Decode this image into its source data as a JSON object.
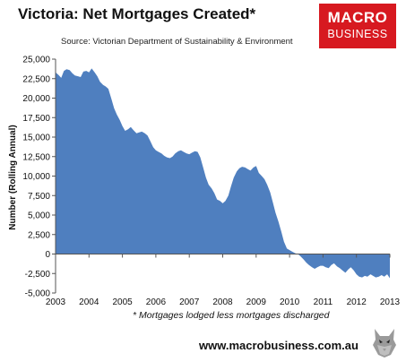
{
  "header": {
    "title": "Victoria: Net Mortgages Created*",
    "source": "Source: Victorian Department of Sustainability & Environment"
  },
  "logo": {
    "line1": "MACRO",
    "line2": "BUSINESS",
    "color": "#d71920"
  },
  "footer": {
    "footnote": "* Mortgages lodged less mortgages discharged",
    "website": "www.macrobusiness.com.au"
  },
  "chart_data": {
    "type": "area",
    "ylabel": "Number (Rolling Annual)",
    "xlabel": "",
    "ylim": [
      -5000,
      25000
    ],
    "xlim": [
      2003,
      2013
    ],
    "yticks": [
      -5000,
      -2500,
      0,
      2500,
      5000,
      7500,
      10000,
      12500,
      15000,
      17500,
      20000,
      22500,
      25000
    ],
    "ytick_labels": [
      "-5,000",
      "-2,500",
      "0",
      "2,500",
      "5,000",
      "7,500",
      "10,000",
      "12,500",
      "15,000",
      "17,500",
      "20,000",
      "22,500",
      "25,000"
    ],
    "xticks": [
      2003,
      2004,
      2005,
      2006,
      2007,
      2008,
      2009,
      2010,
      2011,
      2012,
      2013
    ],
    "xtick_labels": [
      "2003",
      "2004",
      "2005",
      "2006",
      "2007",
      "2008",
      "2009",
      "2010",
      "2011",
      "2012",
      "2013"
    ],
    "fill_color": "#4f7fbf",
    "grid": false,
    "series": [
      {
        "x": [
          2003.0,
          2003.08,
          2003.17,
          2003.25,
          2003.33,
          2003.42,
          2003.5,
          2003.58,
          2003.67,
          2003.75,
          2003.83,
          2003.92,
          2004.0,
          2004.08,
          2004.17,
          2004.25,
          2004.33,
          2004.42,
          2004.5,
          2004.58,
          2004.67,
          2004.75,
          2004.83,
          2004.92,
          2005.0,
          2005.08,
          2005.17,
          2005.25,
          2005.33,
          2005.42,
          2005.5,
          2005.58,
          2005.67,
          2005.75,
          2005.83,
          2005.92,
          2006.0,
          2006.08,
          2006.17,
          2006.25,
          2006.33,
          2006.42,
          2006.5,
          2006.58,
          2006.67,
          2006.75,
          2006.83,
          2006.92,
          2007.0,
          2007.08,
          2007.17,
          2007.25,
          2007.33,
          2007.42,
          2007.5,
          2007.58,
          2007.67,
          2007.75,
          2007.83,
          2007.92,
          2008.0,
          2008.08,
          2008.17,
          2008.25,
          2008.33,
          2008.42,
          2008.5,
          2008.58,
          2008.67,
          2008.75,
          2008.83,
          2008.92,
          2009.0,
          2009.08,
          2009.17,
          2009.25,
          2009.33,
          2009.42,
          2009.5,
          2009.58,
          2009.67,
          2009.75,
          2009.83,
          2009.92,
          2010.0,
          2010.08,
          2010.17,
          2010.25,
          2010.33,
          2010.42,
          2010.5,
          2010.58,
          2010.67,
          2010.75,
          2010.83,
          2010.92,
          2011.0,
          2011.08,
          2011.17,
          2011.25,
          2011.33,
          2011.42,
          2011.5,
          2011.58,
          2011.67,
          2011.75,
          2011.83,
          2011.92,
          2012.0,
          2012.08,
          2012.17,
          2012.25,
          2012.33,
          2012.42,
          2012.5,
          2012.58,
          2012.67,
          2012.75,
          2012.83,
          2012.92,
          2013.0
        ],
        "values": [
          23300,
          23000,
          22600,
          23500,
          23700,
          23600,
          23200,
          22900,
          22800,
          22700,
          23400,
          23500,
          23300,
          23800,
          23300,
          22800,
          22100,
          21700,
          21500,
          21200,
          19900,
          18700,
          17900,
          17200,
          16400,
          15800,
          16000,
          16300,
          15900,
          15500,
          15600,
          15700,
          15500,
          15200,
          14500,
          13700,
          13300,
          13100,
          12900,
          12600,
          12400,
          12300,
          12500,
          12900,
          13200,
          13300,
          13100,
          12900,
          12800,
          13000,
          13200,
          13100,
          12400,
          11000,
          9800,
          8900,
          8400,
          7800,
          7000,
          6800,
          6500,
          6800,
          7500,
          8700,
          9800,
          10600,
          11000,
          11200,
          11100,
          10900,
          10700,
          11100,
          11300,
          10400,
          10000,
          9600,
          8900,
          7900,
          6600,
          5300,
          4100,
          2900,
          1600,
          700,
          500,
          300,
          100,
          0,
          -300,
          -700,
          -1100,
          -1400,
          -1700,
          -1900,
          -1700,
          -1500,
          -1500,
          -1700,
          -1800,
          -1400,
          -1200,
          -1600,
          -1800,
          -2100,
          -2400,
          -2000,
          -1700,
          -2100,
          -2600,
          -2900,
          -3000,
          -2800,
          -2900,
          -2600,
          -2800,
          -3000,
          -2900,
          -2700,
          -2900,
          -2600,
          -3100
        ]
      }
    ]
  }
}
